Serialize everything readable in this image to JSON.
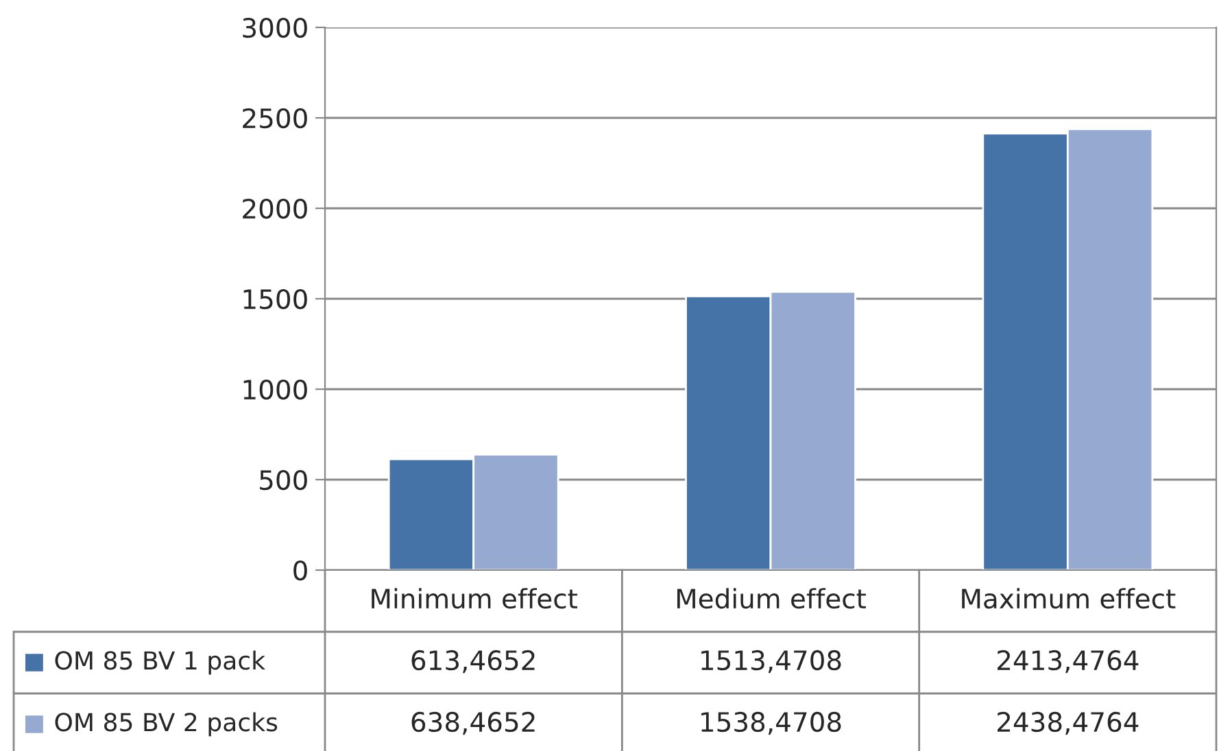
{
  "chart_data": {
    "type": "bar",
    "categories": [
      "Minimum effect",
      "Medium effect",
      "Maximum effect"
    ],
    "series": [
      {
        "name": "OM 85 BV 1 pack",
        "color": "#4573a7",
        "values": [
          613.4652,
          1513.4708,
          2413.4764
        ],
        "value_labels": [
          "613,4652",
          "1513,4708",
          "2413,4764"
        ]
      },
      {
        "name": "OM 85 BV 2 packs",
        "color": "#95a9d1",
        "values": [
          638.4652,
          1538.4708,
          2438.4764
        ],
        "value_labels": [
          "638,4652",
          "1538,4708",
          "2438,4764"
        ]
      }
    ],
    "ylim": [
      0,
      3000
    ],
    "yticks": [
      0,
      500,
      1000,
      1500,
      2000,
      2500,
      3000
    ],
    "grid": "y",
    "legend": "bottom left"
  }
}
